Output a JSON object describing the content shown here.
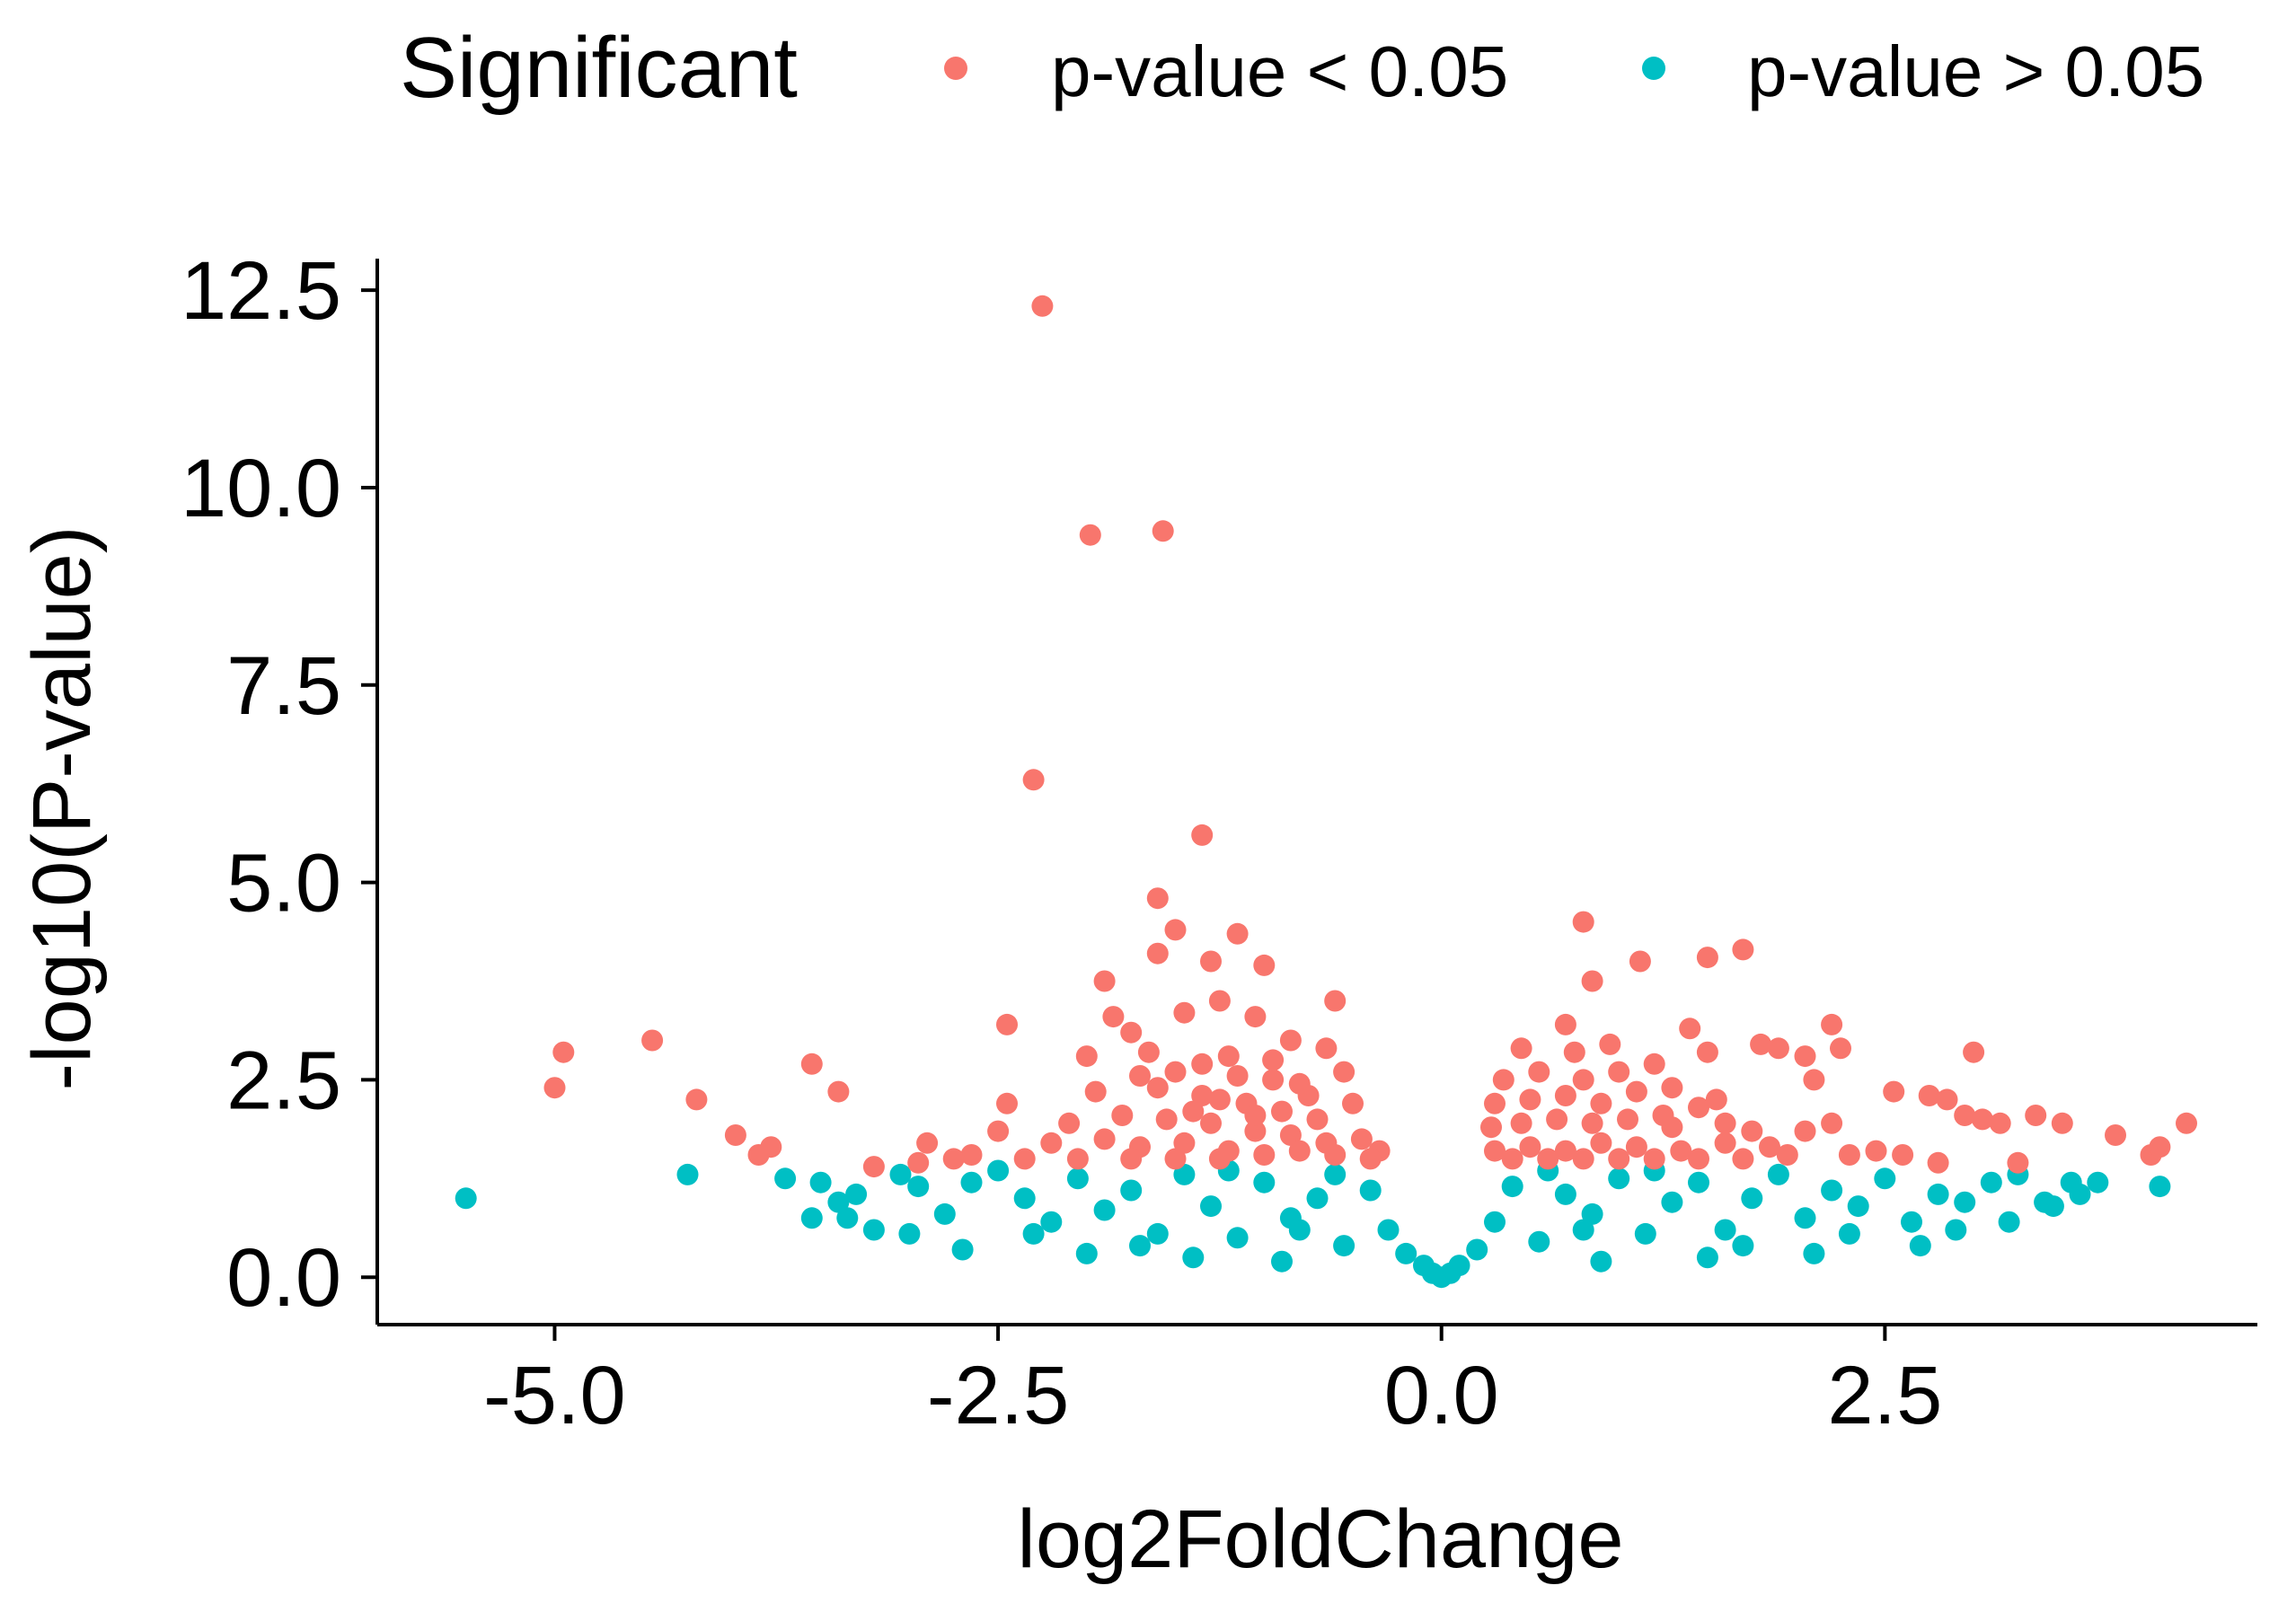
{
  "colors": {
    "significant": "#F8766D",
    "not_significant": "#00BFC4",
    "axis": "#000000",
    "background": "#FFFFFF"
  },
  "legend": {
    "title": "Significant",
    "items": [
      {
        "label": "p-value < 0.05",
        "color": "#F8766D"
      },
      {
        "label": "p-value > 0.05",
        "color": "#00BFC4"
      }
    ]
  },
  "chart_data": {
    "type": "scatter",
    "xlabel": "log2FoldChange",
    "ylabel": "-log10(P-value)",
    "xlim": [
      -6.0,
      4.6
    ],
    "ylim": [
      -0.6,
      12.9
    ],
    "x_ticks": [
      -5.0,
      -2.5,
      0.0,
      2.5
    ],
    "x_tick_labels": [
      "-5.0",
      "-2.5",
      "0.0",
      "2.5"
    ],
    "y_ticks": [
      0.0,
      2.5,
      5.0,
      7.5,
      10.0,
      12.5
    ],
    "y_tick_labels": [
      "0.0",
      "2.5",
      "5.0",
      "7.5",
      "10.0",
      "12.5"
    ],
    "grid": false,
    "legend_position": "top",
    "series": [
      {
        "name": "p-value < 0.05",
        "color": "#F8766D",
        "points": [
          [
            -2.25,
            12.3
          ],
          [
            -1.98,
            9.4
          ],
          [
            -1.57,
            9.45
          ],
          [
            -2.3,
            6.3
          ],
          [
            -1.35,
            5.6
          ],
          [
            -1.6,
            4.8
          ],
          [
            -1.5,
            4.4
          ],
          [
            -1.15,
            4.35
          ],
          [
            -1.9,
            3.75
          ],
          [
            -1.6,
            4.1
          ],
          [
            -1.3,
            4.0
          ],
          [
            -1.0,
            3.95
          ],
          [
            -0.6,
            3.5
          ],
          [
            -2.45,
            3.2
          ],
          [
            -1.85,
            3.3
          ],
          [
            -1.75,
            3.1
          ],
          [
            -1.45,
            3.35
          ],
          [
            -1.25,
            3.5
          ],
          [
            -1.05,
            3.3
          ],
          [
            -0.85,
            3.0
          ],
          [
            -0.65,
            2.9
          ],
          [
            -0.55,
            2.6
          ],
          [
            -2.0,
            2.8
          ],
          [
            -1.65,
            2.85
          ],
          [
            -1.5,
            2.6
          ],
          [
            -1.2,
            2.8
          ],
          [
            -0.95,
            2.5
          ],
          [
            -0.75,
            2.3
          ],
          [
            -1.95,
            2.35
          ],
          [
            -1.6,
            2.4
          ],
          [
            -1.35,
            2.3
          ],
          [
            -1.1,
            2.2
          ],
          [
            -0.9,
            2.1
          ],
          [
            -0.7,
            2.0
          ],
          [
            -0.5,
            2.2
          ],
          [
            -2.45,
            2.2
          ],
          [
            -2.1,
            1.95
          ],
          [
            -1.8,
            2.05
          ],
          [
            -1.55,
            2.0
          ],
          [
            -1.3,
            1.95
          ],
          [
            -1.05,
            1.85
          ],
          [
            -0.85,
            1.8
          ],
          [
            -0.65,
            1.7
          ],
          [
            -0.45,
            1.75
          ],
          [
            -0.35,
            1.6
          ],
          [
            -2.5,
            1.85
          ],
          [
            -2.2,
            1.7
          ],
          [
            -1.9,
            1.75
          ],
          [
            -1.7,
            1.65
          ],
          [
            -1.45,
            1.7
          ],
          [
            -1.2,
            1.6
          ],
          [
            -1.0,
            1.55
          ],
          [
            -0.8,
            1.6
          ],
          [
            -0.6,
            1.55
          ],
          [
            -0.4,
            1.5
          ],
          [
            -2.65,
            1.55
          ],
          [
            -2.35,
            1.5
          ],
          [
            -2.05,
            1.5
          ],
          [
            -1.75,
            1.5
          ],
          [
            -1.5,
            1.5
          ],
          [
            -1.25,
            1.5
          ],
          [
            -1.4,
            2.1
          ],
          [
            -1.15,
            2.55
          ],
          [
            -0.95,
            2.75
          ],
          [
            -1.35,
            2.7
          ],
          [
            -1.7,
            2.55
          ],
          [
            -0.8,
            2.45
          ],
          [
            -1.05,
            2.05
          ],
          [
            -1.25,
            2.25
          ],
          [
            -5.0,
            2.4
          ],
          [
            -4.95,
            2.85
          ],
          [
            -4.45,
            3.0
          ],
          [
            -4.2,
            2.25
          ],
          [
            -3.98,
            1.8
          ],
          [
            -3.85,
            1.55
          ],
          [
            -3.78,
            1.65
          ],
          [
            -3.55,
            2.7
          ],
          [
            -3.4,
            2.35
          ],
          [
            -2.9,
            1.7
          ],
          [
            -2.75,
            1.5
          ],
          [
            -3.2,
            1.4
          ],
          [
            -2.95,
            1.45
          ],
          [
            0.8,
            4.5
          ],
          [
            1.12,
            4.0
          ],
          [
            1.5,
            4.05
          ],
          [
            1.7,
            4.15
          ],
          [
            0.85,
            3.75
          ],
          [
            0.7,
            3.2
          ],
          [
            1.4,
            3.15
          ],
          [
            0.45,
            2.9
          ],
          [
            0.75,
            2.85
          ],
          [
            0.95,
            2.95
          ],
          [
            1.2,
            2.7
          ],
          [
            1.5,
            2.85
          ],
          [
            0.35,
            2.5
          ],
          [
            0.55,
            2.6
          ],
          [
            0.8,
            2.5
          ],
          [
            1.0,
            2.6
          ],
          [
            1.3,
            2.4
          ],
          [
            0.3,
            2.2
          ],
          [
            0.5,
            2.25
          ],
          [
            0.7,
            2.3
          ],
          [
            0.9,
            2.2
          ],
          [
            1.1,
            2.35
          ],
          [
            1.45,
            2.15
          ],
          [
            0.28,
            1.9
          ],
          [
            0.45,
            1.95
          ],
          [
            0.65,
            2.0
          ],
          [
            0.85,
            1.95
          ],
          [
            1.05,
            2.0
          ],
          [
            1.3,
            1.9
          ],
          [
            1.6,
            1.95
          ],
          [
            0.3,
            1.6
          ],
          [
            0.5,
            1.65
          ],
          [
            0.7,
            1.6
          ],
          [
            0.9,
            1.7
          ],
          [
            1.1,
            1.65
          ],
          [
            1.35,
            1.6
          ],
          [
            1.6,
            1.7
          ],
          [
            1.85,
            1.65
          ],
          [
            0.4,
            1.5
          ],
          [
            0.6,
            1.5
          ],
          [
            0.8,
            1.5
          ],
          [
            1.0,
            1.5
          ],
          [
            1.2,
            1.5
          ],
          [
            1.45,
            1.5
          ],
          [
            1.7,
            1.5
          ],
          [
            1.95,
            1.55
          ],
          [
            2.05,
            1.85
          ],
          [
            2.2,
            1.95
          ],
          [
            2.3,
            1.55
          ],
          [
            2.45,
            1.6
          ],
          [
            1.8,
            2.95
          ],
          [
            1.9,
            2.9
          ],
          [
            2.05,
            2.8
          ],
          [
            2.1,
            2.5
          ],
          [
            2.25,
            2.9
          ],
          [
            2.2,
            3.2
          ],
          [
            2.55,
            2.35
          ],
          [
            2.75,
            2.3
          ],
          [
            2.85,
            2.25
          ],
          [
            2.95,
            2.05
          ],
          [
            3.05,
            2.0
          ],
          [
            3.15,
            1.95
          ],
          [
            3.0,
            2.85
          ],
          [
            3.35,
            2.05
          ],
          [
            3.5,
            1.95
          ],
          [
            3.8,
            1.8
          ],
          [
            4.0,
            1.55
          ],
          [
            4.05,
            1.65
          ],
          [
            4.2,
            1.95
          ],
          [
            2.6,
            1.55
          ],
          [
            2.8,
            1.45
          ],
          [
            3.25,
            1.45
          ],
          [
            1.55,
            2.25
          ],
          [
            1.25,
            2.05
          ],
          [
            1.75,
            1.85
          ]
        ]
      },
      {
        "name": "p-value > 0.05",
        "color": "#00BFC4",
        "points": [
          [
            -5.5,
            1.0
          ],
          [
            -4.25,
            1.3
          ],
          [
            -3.7,
            1.25
          ],
          [
            -3.55,
            0.75
          ],
          [
            -3.5,
            1.2
          ],
          [
            -3.4,
            0.95
          ],
          [
            -3.3,
            1.05
          ],
          [
            -3.2,
            0.6
          ],
          [
            -3.05,
            1.3
          ],
          [
            -2.95,
            1.15
          ],
          [
            -2.8,
            0.8
          ],
          [
            -2.65,
            1.2
          ],
          [
            -2.5,
            1.35
          ],
          [
            -2.35,
            1.0
          ],
          [
            -2.2,
            0.7
          ],
          [
            -2.05,
            1.25
          ],
          [
            -1.9,
            0.85
          ],
          [
            -1.75,
            1.1
          ],
          [
            -1.6,
            0.55
          ],
          [
            -1.45,
            1.3
          ],
          [
            -1.3,
            0.9
          ],
          [
            -1.15,
            0.5
          ],
          [
            -1.0,
            1.2
          ],
          [
            -0.85,
            0.75
          ],
          [
            -0.7,
            1.0
          ],
          [
            -0.55,
            0.4
          ],
          [
            -0.4,
            1.1
          ],
          [
            -0.3,
            0.6
          ],
          [
            -0.2,
            0.3
          ],
          [
            -0.1,
            0.15
          ],
          [
            -0.05,
            0.05
          ],
          [
            0.0,
            0.0
          ],
          [
            0.05,
            0.05
          ],
          [
            0.1,
            0.15
          ],
          [
            0.2,
            0.35
          ],
          [
            0.3,
            0.7
          ],
          [
            0.4,
            1.15
          ],
          [
            0.55,
            0.45
          ],
          [
            0.7,
            1.05
          ],
          [
            0.85,
            0.8
          ],
          [
            1.0,
            1.25
          ],
          [
            1.15,
            0.55
          ],
          [
            1.3,
            0.95
          ],
          [
            1.45,
            1.2
          ],
          [
            1.6,
            0.6
          ],
          [
            1.75,
            1.0
          ],
          [
            1.9,
            1.3
          ],
          [
            2.05,
            0.75
          ],
          [
            2.2,
            1.1
          ],
          [
            2.35,
            0.9
          ],
          [
            2.5,
            1.25
          ],
          [
            2.65,
            0.7
          ],
          [
            2.8,
            1.05
          ],
          [
            2.95,
            0.95
          ],
          [
            3.1,
            1.2
          ],
          [
            3.25,
            1.3
          ],
          [
            3.4,
            0.95
          ],
          [
            3.55,
            1.2
          ],
          [
            3.7,
            1.2
          ],
          [
            4.05,
            1.15
          ],
          [
            -2.7,
            0.35
          ],
          [
            -2.0,
            0.3
          ],
          [
            -1.4,
            0.25
          ],
          [
            -0.9,
            0.2
          ],
          [
            0.9,
            0.2
          ],
          [
            1.5,
            0.25
          ],
          [
            2.1,
            0.3
          ],
          [
            2.7,
            0.4
          ],
          [
            -3.0,
            0.55
          ],
          [
            3.2,
            0.7
          ],
          [
            -1.2,
            1.35
          ],
          [
            -0.6,
            1.3
          ],
          [
            0.6,
            1.35
          ],
          [
            1.2,
            1.35
          ],
          [
            -2.3,
            0.55
          ],
          [
            2.3,
            0.55
          ],
          [
            -1.7,
            0.4
          ],
          [
            1.7,
            0.4
          ],
          [
            -0.8,
            0.6
          ],
          [
            0.8,
            0.6
          ],
          [
            3.45,
            0.9
          ],
          [
            2.9,
            0.6
          ],
          [
            -3.35,
            0.75
          ],
          [
            3.6,
            1.05
          ]
        ]
      }
    ]
  }
}
